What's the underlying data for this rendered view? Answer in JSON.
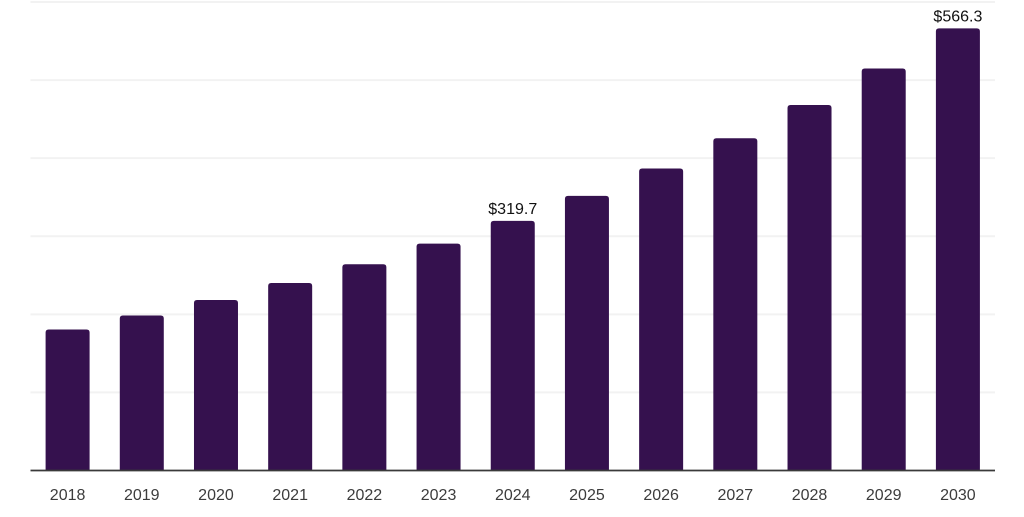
{
  "chart_data": {
    "type": "bar",
    "title": "",
    "xlabel": "",
    "ylabel": "",
    "categories": [
      "2018",
      "2019",
      "2020",
      "2021",
      "2022",
      "2023",
      "2024",
      "2025",
      "2026",
      "2027",
      "2028",
      "2029",
      "2030"
    ],
    "values": [
      180.5,
      198.5,
      218.3,
      240.2,
      264.2,
      290.6,
      319.7,
      351.7,
      386.8,
      425.5,
      468.1,
      514.9,
      566.3
    ],
    "value_labels": [
      {
        "category": "2024",
        "text": "$319.7"
      },
      {
        "category": "2030",
        "text": "$566.3"
      }
    ],
    "ylim": [
      0,
      600
    ],
    "gridline_step": 100,
    "grid": "horizontal-only",
    "legend": "none",
    "y_tick_labels_visible": false,
    "colors": {
      "bar": "#35114E",
      "gridline": "#F2F2F2",
      "axis_line": "#3A3A3A",
      "tick_label": "#3C3C3C",
      "value_label": "#111111",
      "background": "#FFFFFF"
    }
  }
}
